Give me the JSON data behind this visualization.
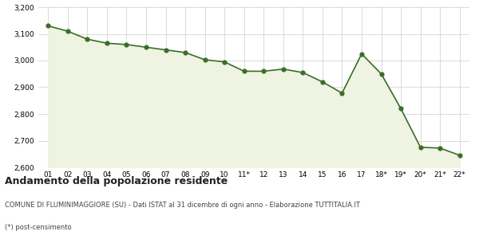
{
  "x_labels": [
    "01",
    "02",
    "03",
    "04",
    "05",
    "06",
    "07",
    "08",
    "09",
    "10",
    "11*",
    "12",
    "13",
    "14",
    "15",
    "16",
    "17",
    "18*",
    "19*",
    "20*",
    "21*",
    "22*"
  ],
  "values": [
    3130,
    3110,
    3080,
    3065,
    3060,
    3050,
    3040,
    3030,
    3003,
    2995,
    2960,
    2960,
    2968,
    2955,
    2920,
    2878,
    3025,
    2950,
    2820,
    2675,
    2672,
    2645
  ],
  "line_color": "#3a6e28",
  "fill_color": "#eef3e2",
  "marker_color": "#3a6e28",
  "bg_color": "#ffffff",
  "grid_color": "#cccccc",
  "ylim": [
    2600,
    3200
  ],
  "yticks": [
    2600,
    2700,
    2800,
    2900,
    3000,
    3100,
    3200
  ],
  "title": "Andamento della popolazione residente",
  "subtitle": "COMUNE DI FLUMINIMAGGIORE (SU) - Dati ISTAT al 31 dicembre di ogni anno - Elaborazione TUTTITALIA.IT",
  "footnote": "(*) post-censimento",
  "title_fontsize": 9,
  "subtitle_fontsize": 6,
  "footnote_fontsize": 6,
  "tick_fontsize": 6.5
}
